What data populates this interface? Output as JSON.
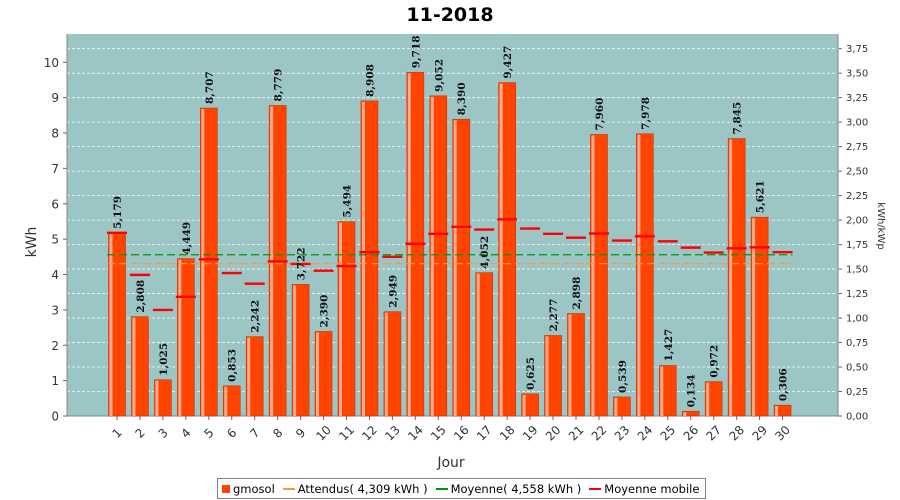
{
  "chart_data": {
    "type": "bar",
    "title": "11-2018",
    "xlabel": "Jour",
    "ylabel": "kWh",
    "y2label": "kWh/kWp",
    "ylim": [
      0,
      10.8
    ],
    "yticks": [
      "0",
      "1",
      "2",
      "3",
      "4",
      "5",
      "6",
      "7",
      "8",
      "9",
      "10"
    ],
    "y2lim": [
      0,
      3.9
    ],
    "y2ticks": [
      "0,00",
      "0,25",
      "0,50",
      "0,75",
      "1,00",
      "1,25",
      "1,50",
      "1,75",
      "2,00",
      "2,25",
      "2,50",
      "2,75",
      "3,00",
      "3,25",
      "3,50",
      "3,75"
    ],
    "grid": true,
    "legend_position": "bottom",
    "categories": [
      "1",
      "2",
      "3",
      "4",
      "5",
      "6",
      "7",
      "8",
      "9",
      "10",
      "11",
      "12",
      "13",
      "14",
      "15",
      "16",
      "17",
      "18",
      "19",
      "20",
      "21",
      "22",
      "23",
      "24",
      "25",
      "26",
      "27",
      "28",
      "29",
      "30"
    ],
    "series": [
      {
        "name": "gmosol",
        "kind": "bar",
        "color": "#ff4400",
        "values": [
          5.179,
          2.808,
          1.025,
          4.449,
          8.707,
          0.853,
          2.242,
          8.779,
          3.722,
          2.39,
          5.494,
          8.908,
          2.949,
          9.718,
          9.052,
          8.39,
          4.052,
          9.427,
          0.625,
          2.277,
          2.898,
          7.96,
          0.539,
          7.978,
          1.427,
          0.134,
          0.972,
          7.845,
          5.621,
          0.306
        ],
        "labels": [
          "5,179",
          "2,808",
          "1,025",
          "4,449",
          "8,707",
          "0,853",
          "2,242",
          "8,779",
          "3,722",
          "2,390",
          "5,494",
          "8,908",
          "2,949",
          "9,718",
          "9,052",
          "8,390",
          "4,052",
          "9,427",
          "0,625",
          "2,277",
          "2,898",
          "7,960",
          "0,539",
          "7,978",
          "1,427",
          "0,134",
          "0,972",
          "7,845",
          "5,621",
          "0,306"
        ]
      },
      {
        "name": "Attendus( 4,309 kWh )",
        "kind": "line",
        "color": "#ff9933",
        "value": 4.309
      },
      {
        "name": "Moyenne( 4,558 kWh )",
        "kind": "line",
        "color": "#009900",
        "value": 4.558
      },
      {
        "name": "Moyenne mobile",
        "kind": "step",
        "color": "#ff0000",
        "values": [
          5.179,
          3.99,
          3.0,
          3.37,
          4.43,
          4.04,
          3.74,
          4.37,
          4.3,
          4.11,
          4.24,
          4.63,
          4.5,
          4.87,
          5.15,
          5.35,
          5.27,
          5.56,
          5.3,
          5.15,
          5.04,
          5.16,
          4.96,
          5.08,
          4.94,
          4.76,
          4.62,
          4.74,
          4.77,
          4.63
        ]
      }
    ]
  }
}
